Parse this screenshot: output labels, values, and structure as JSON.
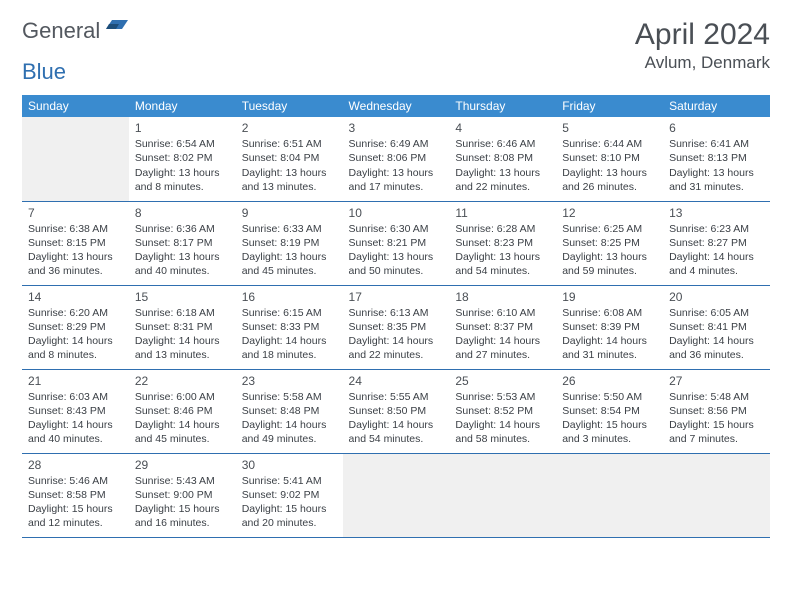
{
  "logo": {
    "text1": "General",
    "text2": "Blue"
  },
  "title": "April 2024",
  "location": "Avlum, Denmark",
  "dayHeaders": [
    "Sunday",
    "Monday",
    "Tuesday",
    "Wednesday",
    "Thursday",
    "Friday",
    "Saturday"
  ],
  "colors": {
    "headerBg": "#3a8bcf",
    "rowBorder": "#2f6fb0",
    "emptyBg": "#f0f0f0",
    "textDark": "#4a4f55",
    "bodyText": "#3a3f45",
    "logoGray": "#53585f",
    "logoBlue": "#2f6fb0"
  },
  "weeks": [
    [
      null,
      {
        "n": "1",
        "sr": "6:54 AM",
        "ss": "8:02 PM",
        "dl": "13 hours and 8 minutes."
      },
      {
        "n": "2",
        "sr": "6:51 AM",
        "ss": "8:04 PM",
        "dl": "13 hours and 13 minutes."
      },
      {
        "n": "3",
        "sr": "6:49 AM",
        "ss": "8:06 PM",
        "dl": "13 hours and 17 minutes."
      },
      {
        "n": "4",
        "sr": "6:46 AM",
        "ss": "8:08 PM",
        "dl": "13 hours and 22 minutes."
      },
      {
        "n": "5",
        "sr": "6:44 AM",
        "ss": "8:10 PM",
        "dl": "13 hours and 26 minutes."
      },
      {
        "n": "6",
        "sr": "6:41 AM",
        "ss": "8:13 PM",
        "dl": "13 hours and 31 minutes."
      }
    ],
    [
      {
        "n": "7",
        "sr": "6:38 AM",
        "ss": "8:15 PM",
        "dl": "13 hours and 36 minutes."
      },
      {
        "n": "8",
        "sr": "6:36 AM",
        "ss": "8:17 PM",
        "dl": "13 hours and 40 minutes."
      },
      {
        "n": "9",
        "sr": "6:33 AM",
        "ss": "8:19 PM",
        "dl": "13 hours and 45 minutes."
      },
      {
        "n": "10",
        "sr": "6:30 AM",
        "ss": "8:21 PM",
        "dl": "13 hours and 50 minutes."
      },
      {
        "n": "11",
        "sr": "6:28 AM",
        "ss": "8:23 PM",
        "dl": "13 hours and 54 minutes."
      },
      {
        "n": "12",
        "sr": "6:25 AM",
        "ss": "8:25 PM",
        "dl": "13 hours and 59 minutes."
      },
      {
        "n": "13",
        "sr": "6:23 AM",
        "ss": "8:27 PM",
        "dl": "14 hours and 4 minutes."
      }
    ],
    [
      {
        "n": "14",
        "sr": "6:20 AM",
        "ss": "8:29 PM",
        "dl": "14 hours and 8 minutes."
      },
      {
        "n": "15",
        "sr": "6:18 AM",
        "ss": "8:31 PM",
        "dl": "14 hours and 13 minutes."
      },
      {
        "n": "16",
        "sr": "6:15 AM",
        "ss": "8:33 PM",
        "dl": "14 hours and 18 minutes."
      },
      {
        "n": "17",
        "sr": "6:13 AM",
        "ss": "8:35 PM",
        "dl": "14 hours and 22 minutes."
      },
      {
        "n": "18",
        "sr": "6:10 AM",
        "ss": "8:37 PM",
        "dl": "14 hours and 27 minutes."
      },
      {
        "n": "19",
        "sr": "6:08 AM",
        "ss": "8:39 PM",
        "dl": "14 hours and 31 minutes."
      },
      {
        "n": "20",
        "sr": "6:05 AM",
        "ss": "8:41 PM",
        "dl": "14 hours and 36 minutes."
      }
    ],
    [
      {
        "n": "21",
        "sr": "6:03 AM",
        "ss": "8:43 PM",
        "dl": "14 hours and 40 minutes."
      },
      {
        "n": "22",
        "sr": "6:00 AM",
        "ss": "8:46 PM",
        "dl": "14 hours and 45 minutes."
      },
      {
        "n": "23",
        "sr": "5:58 AM",
        "ss": "8:48 PM",
        "dl": "14 hours and 49 minutes."
      },
      {
        "n": "24",
        "sr": "5:55 AM",
        "ss": "8:50 PM",
        "dl": "14 hours and 54 minutes."
      },
      {
        "n": "25",
        "sr": "5:53 AM",
        "ss": "8:52 PM",
        "dl": "14 hours and 58 minutes."
      },
      {
        "n": "26",
        "sr": "5:50 AM",
        "ss": "8:54 PM",
        "dl": "15 hours and 3 minutes."
      },
      {
        "n": "27",
        "sr": "5:48 AM",
        "ss": "8:56 PM",
        "dl": "15 hours and 7 minutes."
      }
    ],
    [
      {
        "n": "28",
        "sr": "5:46 AM",
        "ss": "8:58 PM",
        "dl": "15 hours and 12 minutes."
      },
      {
        "n": "29",
        "sr": "5:43 AM",
        "ss": "9:00 PM",
        "dl": "15 hours and 16 minutes."
      },
      {
        "n": "30",
        "sr": "5:41 AM",
        "ss": "9:02 PM",
        "dl": "15 hours and 20 minutes."
      },
      null,
      null,
      null,
      null
    ]
  ],
  "labels": {
    "sunrise": "Sunrise:",
    "sunset": "Sunset:",
    "daylight": "Daylight:"
  }
}
